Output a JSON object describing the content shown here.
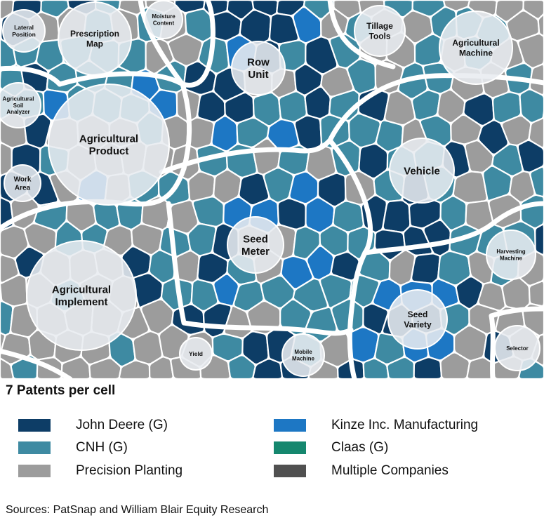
{
  "colors": {
    "john_deere": "#0d3d66",
    "cnh": "#3e8aa2",
    "precision_planting": "#9c9c9c",
    "kinze": "#1d77c4",
    "claas": "#15876e",
    "multiple": "#505050"
  },
  "clusters": [
    {
      "label": "Lateral Position",
      "lines": [
        "Lateral",
        "Position"
      ]
    },
    {
      "label": "Prescription Map",
      "lines": [
        "Prescription",
        "Map"
      ]
    },
    {
      "label": "Moisture Content",
      "lines": [
        "Moisture",
        "Content"
      ]
    },
    {
      "label": "Row Unit",
      "lines": [
        "Row",
        "Unit"
      ]
    },
    {
      "label": "Tillage Tools",
      "lines": [
        "Tillage",
        "Tools"
      ]
    },
    {
      "label": "Agricultural Machine",
      "lines": [
        "Agricultural",
        "Machine"
      ]
    },
    {
      "label": "Agricultural Soil Analyzer",
      "lines": [
        "Agricultural",
        "Soil",
        "Analyzer"
      ]
    },
    {
      "label": "Agricultural Product",
      "lines": [
        "Agricultural",
        "Product"
      ]
    },
    {
      "label": "Vehicle",
      "lines": [
        "Vehicle"
      ]
    },
    {
      "label": "Work Area",
      "lines": [
        "Work",
        "Area"
      ]
    },
    {
      "label": "Seed Meter",
      "lines": [
        "Seed",
        "Meter"
      ]
    },
    {
      "label": "Harvesting Machine",
      "lines": [
        "Harvesting",
        "Machine"
      ]
    },
    {
      "label": "Agricultural Implement",
      "lines": [
        "Agricultural",
        "Implement"
      ]
    },
    {
      "label": "Seed Variety",
      "lines": [
        "Seed",
        "Variety"
      ]
    },
    {
      "label": "Yield",
      "lines": [
        "Yield"
      ]
    },
    {
      "label": "Mobile Machine",
      "lines": [
        "Mobile",
        "Machine"
      ]
    },
    {
      "label": "Selector",
      "lines": [
        "Selector"
      ]
    }
  ],
  "legend": {
    "title": "7 Patents per cell",
    "items": [
      {
        "label": "John Deere (G)",
        "color": "#0d3d66"
      },
      {
        "label": "Kinze Inc. Manufacturing",
        "color": "#1d77c4"
      },
      {
        "label": "CNH (G)",
        "color": "#3e8aa2"
      },
      {
        "label": "Claas (G)",
        "color": "#15876e"
      },
      {
        "label": "Precision Planting",
        "color": "#9c9c9c"
      },
      {
        "label": "Multiple Companies",
        "color": "#505050"
      }
    ]
  },
  "sources": "Sources: PatSnap and William Blair Equity Research"
}
